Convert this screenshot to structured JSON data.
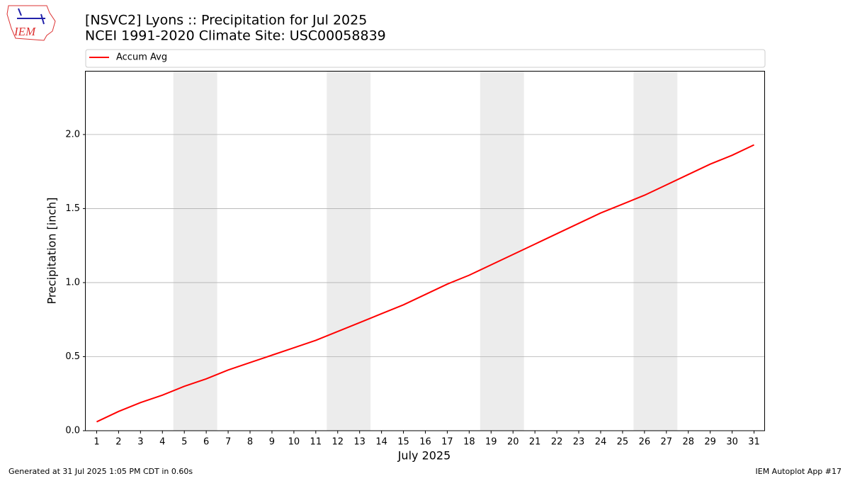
{
  "logo": "IEM",
  "footer": {
    "left": "Generated at 31 Jul 2025 1:05 PM CDT in 0.60s",
    "right": "IEM Autoplot App #17"
  },
  "chart_data": {
    "type": "line",
    "title": "[NSVC2] Lyons :: Precipitation for Jul 2025",
    "subtitle": "NCEI 1991-2020 Climate Site: USC00058839",
    "xlabel": "July 2025",
    "ylabel": "Precipitation [inch]",
    "x": [
      1,
      2,
      3,
      4,
      5,
      6,
      7,
      8,
      9,
      10,
      11,
      12,
      13,
      14,
      15,
      16,
      17,
      18,
      19,
      20,
      21,
      22,
      23,
      24,
      25,
      26,
      27,
      28,
      29,
      30,
      31
    ],
    "xlim": [
      0.5,
      31.5
    ],
    "xticks": [
      1,
      2,
      3,
      4,
      5,
      6,
      7,
      8,
      9,
      10,
      11,
      12,
      13,
      14,
      15,
      16,
      17,
      18,
      19,
      20,
      21,
      22,
      23,
      24,
      25,
      26,
      27,
      28,
      29,
      30,
      31
    ],
    "ylim": [
      0,
      2.43
    ],
    "yticks": [
      {
        "value": 0,
        "label": "0.0"
      },
      0.5,
      {
        "value": 1,
        "label": "1.0"
      },
      1.5,
      {
        "value": 2,
        "label": "2.0"
      }
    ],
    "grid": "y",
    "legend": "top",
    "shaded_x_spans": [
      [
        4.5,
        6.5
      ],
      [
        11.5,
        13.5
      ],
      [
        18.5,
        20.5
      ],
      [
        25.5,
        27.5
      ]
    ],
    "shade_color": "#ececec",
    "series": [
      {
        "name": "Accum Avg",
        "color": "#ff0000",
        "values": [
          0.06,
          0.13,
          0.19,
          0.24,
          0.3,
          0.35,
          0.41,
          0.46,
          0.51,
          0.56,
          0.61,
          0.67,
          0.73,
          0.79,
          0.85,
          0.92,
          0.99,
          1.05,
          1.12,
          1.19,
          1.26,
          1.33,
          1.4,
          1.47,
          1.53,
          1.59,
          1.66,
          1.73,
          1.8,
          1.86,
          1.93
        ]
      }
    ]
  }
}
